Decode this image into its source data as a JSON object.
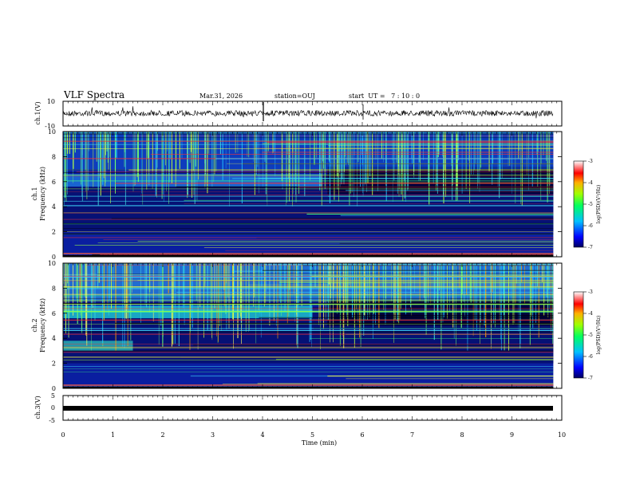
{
  "header": {
    "title": "VLF Spectra",
    "date": "Mar.31, 2026",
    "station": "station=OUJ",
    "start": "start  UT =   7 : 10 : 0"
  },
  "chart_data": [
    {
      "type": "line",
      "name": "ch1-waveform",
      "ylabel": "ch.1(V)",
      "ylim": [
        -10,
        10
      ],
      "tick_labels": [
        "10",
        "-10"
      ]
    },
    {
      "type": "heatmap",
      "name": "ch1-spectrogram",
      "ylabel_line1": "ch.1",
      "ylabel_line2": "Frequency (kHz)",
      "ylim": [
        0,
        10
      ],
      "y_ticks": [
        "0",
        "2",
        "4",
        "6",
        "8",
        "10"
      ],
      "colorbar": {
        "label": "log(PSD)(V²/Hz)",
        "range": [
          -7,
          -3
        ],
        "ticks": [
          "-3",
          "-4",
          "-5",
          "-6",
          "-7"
        ]
      }
    },
    {
      "type": "heatmap",
      "name": "ch2-spectrogram",
      "ylabel_line1": "ch.2",
      "ylabel_line2": "Frequency (kHz)",
      "ylim": [
        0,
        10
      ],
      "y_ticks": [
        "0",
        "2",
        "4",
        "6",
        "8",
        "10"
      ],
      "colorbar": {
        "label": "log(PSD)(V²/Hz)",
        "range": [
          -7,
          -3
        ],
        "ticks": [
          "-3",
          "-4",
          "-5",
          "-6",
          "-7"
        ]
      }
    },
    {
      "type": "line",
      "name": "ch3-waveform",
      "ylabel": "ch.3(V)",
      "ylim": [
        -5,
        5
      ],
      "tick_labels": [
        "5",
        "0",
        "-5"
      ]
    }
  ],
  "x_axis": {
    "label": "Time (min)",
    "range": [
      0,
      10
    ],
    "ticks": [
      "0",
      "1",
      "2",
      "3",
      "4",
      "5",
      "6",
      "7",
      "8",
      "9",
      "10"
    ],
    "data_end": 9.83
  }
}
